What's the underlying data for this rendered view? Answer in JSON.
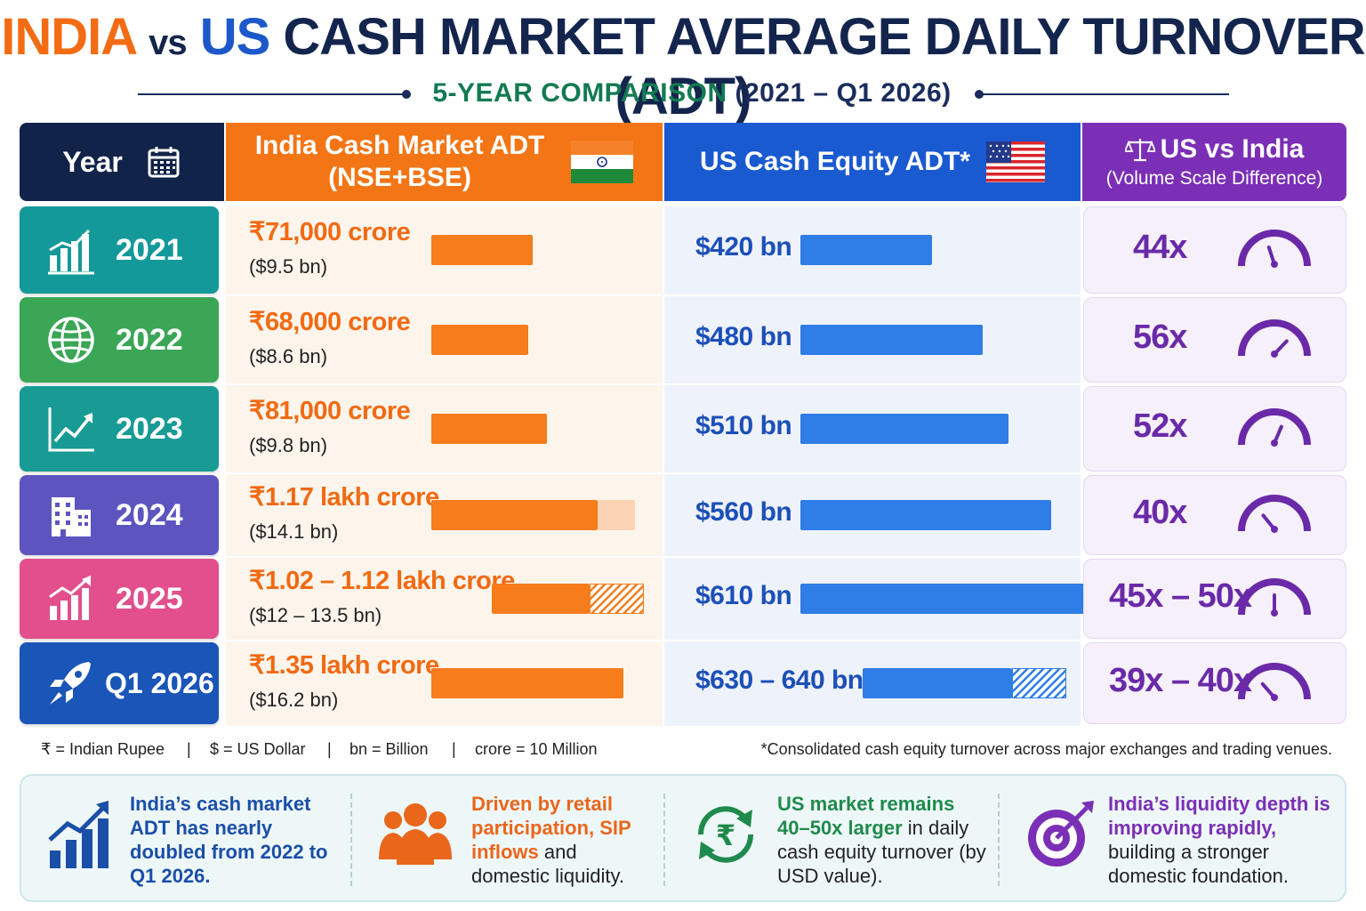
{
  "title": {
    "part1": "INDIA",
    "part2": "vs",
    "part3": "US",
    "part4": "CASH MARKET AVERAGE DAILY TURNOVER (ADT)"
  },
  "subtitle": {
    "text": "5-YEAR COMPARISON",
    "years": "(2021 – Q1 2026)"
  },
  "headers": {
    "year": "Year",
    "india_line1": "India Cash Market ADT",
    "india_line2": "(NSE+BSE)",
    "us": "US Cash Equity ADT*",
    "ratio_line1": "US vs India",
    "ratio_line2": "(Volume Scale Difference)"
  },
  "colors": {
    "india": "#f47515",
    "us": "#1a5ad1",
    "ratio": "#7b2fb6",
    "navy": "#12234a"
  },
  "rows": [
    {
      "year": "2021",
      "icon": "bar-chart-icon",
      "color": "#14999a",
      "inr": "₹71,000 crore",
      "usd": "($9.5 bn)",
      "us_val": "$420 bn",
      "ratio": "44x"
    },
    {
      "year": "2022",
      "icon": "globe-icon",
      "color": "#3aa656",
      "inr": "₹68,000 crore",
      "usd": "($8.6 bn)",
      "us_val": "$480 bn",
      "ratio": "56x"
    },
    {
      "year": "2023",
      "icon": "line-chart-icon",
      "color": "#179b94",
      "inr": "₹81,000 crore",
      "usd": "($9.8 bn)",
      "us_val": "$510 bn",
      "ratio": "52x"
    },
    {
      "year": "2024",
      "icon": "building-icon",
      "color": "#5c55bf",
      "inr": "₹1.17 lakh crore",
      "usd": "($14.1 bn)",
      "us_val": "$560 bn",
      "ratio": "40x"
    },
    {
      "year": "2025",
      "icon": "growth-chart-icon",
      "color": "#e24f8c",
      "inr": "₹1.02 – 1.12 lakh crore",
      "usd": "($12 – 13.5 bn)",
      "us_val": "$610 bn",
      "ratio": "45x – 50x"
    },
    {
      "year": "Q1 2026",
      "icon": "rocket-icon",
      "color": "#1a55b8",
      "inr": "₹1.35 lakh crore",
      "usd": "($16.2 bn)",
      "us_val": "$630 – 640 bn",
      "ratio": "39x – 40x"
    }
  ],
  "chart_data": {
    "type": "bar",
    "categories": [
      "2021",
      "2022",
      "2023",
      "2024",
      "2025",
      "Q1 2026"
    ],
    "series": [
      {
        "name": "India Cash Market ADT (NSE+BSE)",
        "unit": "crore",
        "values": [
          71000,
          68000,
          81000,
          117000,
          [
            102000,
            112000
          ],
          135000
        ]
      },
      {
        "name": "India Cash Market ADT (NSE+BSE)",
        "unit": "US$ bn",
        "values": [
          9.5,
          8.6,
          9.8,
          14.1,
          [
            12,
            13.5
          ],
          16.2
        ]
      },
      {
        "name": "US Cash Equity ADT*",
        "unit": "US$ bn",
        "values": [
          420,
          480,
          510,
          560,
          610,
          [
            630,
            640
          ]
        ]
      },
      {
        "name": "US vs India",
        "unit": "x",
        "values": [
          44,
          56,
          52,
          40,
          [
            45,
            50
          ],
          [
            39,
            40
          ]
        ]
      }
    ]
  },
  "legend": {
    "rupee": "₹ = Indian Rupee",
    "dollar": "$ = US Dollar",
    "bn": "bn = Billion",
    "crore": "crore = 10 Million",
    "sep": "|",
    "note": "*Consolidated cash equity turnover across major exchanges and trading venues."
  },
  "insights": [
    {
      "icon": "growth-bars-icon",
      "color": "#1a4fa8",
      "bold": "India’s cash market ADT has nearly doubled from 2022 to Q1 2026.",
      "rest": ""
    },
    {
      "icon": "people-icon",
      "color": "#e9661a",
      "bold": "Driven by retail participation, SIP inflows",
      "rest": " and domestic liquidity."
    },
    {
      "icon": "rupee-cycle-icon",
      "color": "#1f8a4c",
      "bold": "US market remains 40–50x larger",
      "rest": " in daily cash equity turnover (by USD value)."
    },
    {
      "icon": "target-icon",
      "color": "#7b2fb6",
      "bold": "India’s liquidity depth is improving rapidly,",
      "rest": " building a stronger domestic foundation."
    }
  ]
}
